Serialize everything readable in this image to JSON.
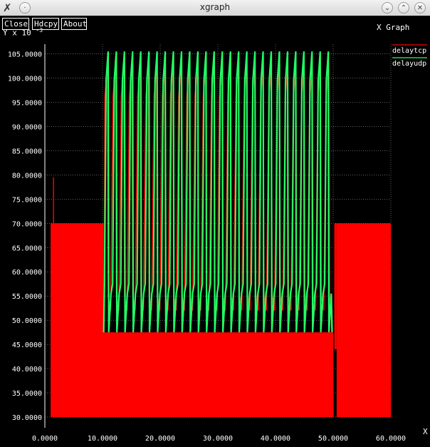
{
  "window": {
    "title": "xgraph",
    "app_icon": "x-logo-icon",
    "controls": [
      "chevron-down-icon",
      "chevron-up-icon",
      "close-icon"
    ]
  },
  "toolbar": {
    "close_label": "Close",
    "hdcpy_label": "Hdcpy",
    "about_label": "About"
  },
  "chart_data": {
    "type": "line",
    "title": "X Graph",
    "xlabel": "X",
    "ylabel": "Y x 10",
    "ylabel_exponent": "-3",
    "xlim": [
      0,
      60
    ],
    "ylim": [
      30,
      107
    ],
    "x_ticks": [
      0,
      10,
      20,
      30,
      40,
      50,
      60
    ],
    "x_tick_labels": [
      "0.0000",
      "10.0000",
      "20.0000",
      "30.0000",
      "40.0000",
      "50.0000",
      "60.0000"
    ],
    "y_ticks": [
      30,
      35,
      40,
      45,
      50,
      55,
      60,
      65,
      70,
      75,
      80,
      85,
      90,
      95,
      100,
      105
    ],
    "y_tick_labels": [
      "30.0000",
      "35.0000",
      "40.0000",
      "45.0000",
      "50.0000",
      "55.0000",
      "60.0000",
      "65.0000",
      "70.0000",
      "75.0000",
      "80.0000",
      "85.0000",
      "90.0000",
      "95.0000",
      "100.0000",
      "105.0000"
    ],
    "grid": true,
    "legend_position": "top-right",
    "series": [
      {
        "name": "delaytcp",
        "color": "#ff0000",
        "style": "filled-oscillation",
        "segments": [
          {
            "x_start": 1.0,
            "x_end": 10.2,
            "y_low": 30,
            "y_high": 70,
            "spike_x": 1.5,
            "spike_y": 79.5
          },
          {
            "x_start": 10.2,
            "x_end": 50.0,
            "y_low": 30,
            "y_high": 102,
            "periods": 28
          },
          {
            "x_start": 50.0,
            "x_end": 50.6,
            "y_low": 44,
            "y_high": 70
          },
          {
            "x_start": 50.6,
            "x_end": 60.0,
            "y_low": 30,
            "y_high": 70
          }
        ]
      },
      {
        "name": "delayudp",
        "color": "#22ff66",
        "style": "oscillation",
        "segments": [
          {
            "x_start": 10.2,
            "x_end": 49.8,
            "y_low": 47.5,
            "y_high": 105.5,
            "periods": 28
          }
        ]
      }
    ]
  }
}
